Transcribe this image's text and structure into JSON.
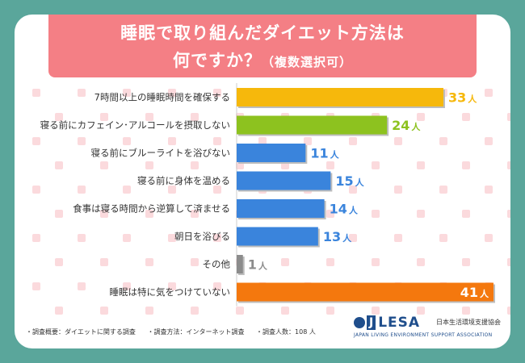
{
  "title": {
    "line1": "睡眠で取り組んだダイエット方法は",
    "line2_main": "何ですか？",
    "line2_note": "（複数選択可）"
  },
  "chart_data": {
    "type": "bar",
    "orientation": "horizontal",
    "unit": "人",
    "categories": [
      "7時間以上の睡眠時間を確保する",
      "寝る前にカフェイン･アルコールを摂取しない",
      "寝る前にブルーライトを浴びない",
      "寝る前に身体を温める",
      "食事は寝る時間から逆算して済ませる",
      "朝日を浴びる",
      "その他",
      "睡眠は特に気をつけていない"
    ],
    "values": [
      33,
      24,
      11,
      15,
      14,
      13,
      1,
      41
    ],
    "bar_colors": [
      "#f6b80c",
      "#8dc21f",
      "#3a84dc",
      "#3a84dc",
      "#3a84dc",
      "#3a84dc",
      "#8c8c8c",
      "#f4780e"
    ],
    "label_colors": [
      "#f6b80c",
      "#8dc21f",
      "#3a84dc",
      "#3a84dc",
      "#3a84dc",
      "#3a84dc",
      "#8c8c8c",
      "#ffffff"
    ],
    "xlim": [
      0,
      41
    ],
    "grid": false,
    "legend": "none"
  },
  "footer": {
    "survey_overview": "・調査概要：ダイエットに関する調査",
    "survey_method": "・調査方法：インターネット調査",
    "respondents": "・調査人数：108 人"
  },
  "logo": {
    "mark": "J",
    "name": "LESA",
    "name_jp": "日本生活環境支援協会",
    "name_en": "JAPAN LIVING ENVIRONMENT SUPPORT ASSOCIATION"
  },
  "colors": {
    "background": "#5aa69b",
    "title_bg": "#f47f85",
    "pattern": "#fbdadd"
  }
}
